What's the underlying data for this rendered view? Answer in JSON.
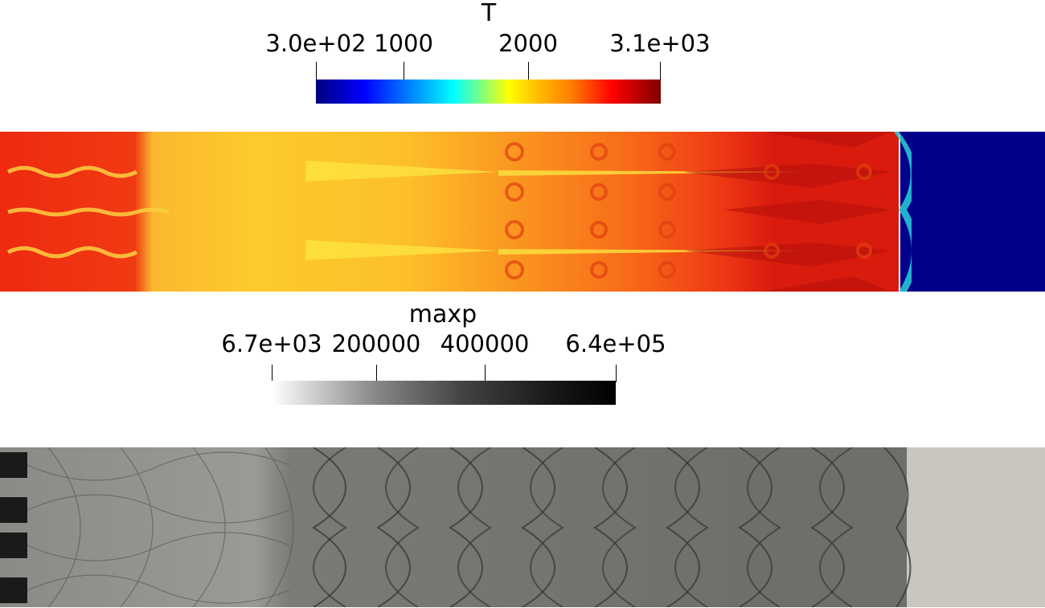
{
  "temperature_legend": {
    "title": "T",
    "ticks": [
      {
        "label": "3.0e+02",
        "value": 300
      },
      {
        "label": "1000",
        "value": 1000
      },
      {
        "label": "2000",
        "value": 2000
      },
      {
        "label": "3.1e+03",
        "value": 3100
      }
    ],
    "range": [
      300,
      3100
    ],
    "colormap": "jet",
    "colors": [
      "#00007f",
      "#0000ff",
      "#00ffff",
      "#ffff00",
      "#ff7f00",
      "#ff0000",
      "#7f0000"
    ]
  },
  "pressure_legend": {
    "title": "maxp",
    "ticks": [
      {
        "label": "6.7e+03",
        "value": 6700
      },
      {
        "label": "200000",
        "value": 200000
      },
      {
        "label": "400000",
        "value": 400000
      },
      {
        "label": "6.4e+05",
        "value": 640000
      }
    ],
    "range": [
      6700,
      640000
    ],
    "colormap": "grayscale",
    "colors": [
      "#ffffff",
      "#000000"
    ]
  },
  "panels": {
    "temperature_field": {
      "icon": "temperature-contour-image"
    },
    "pressure_field": {
      "icon": "max-pressure-contour-image"
    }
  }
}
